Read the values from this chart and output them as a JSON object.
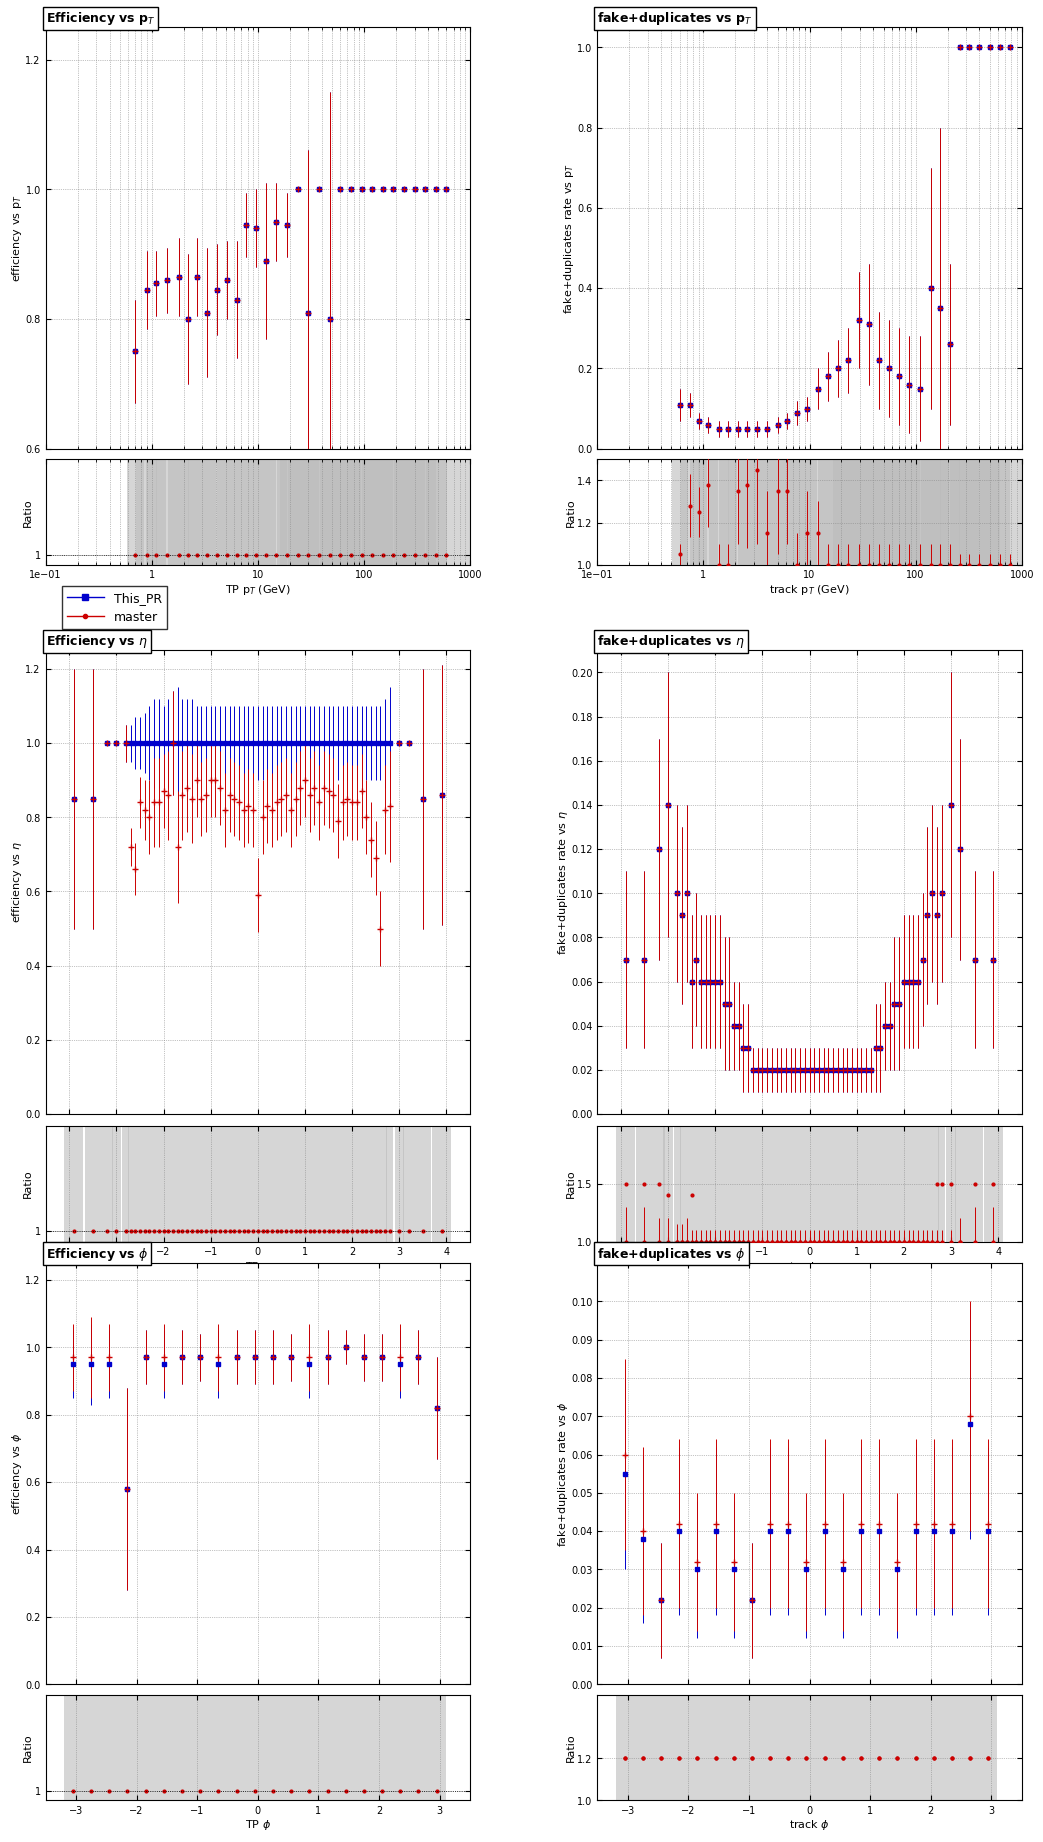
{
  "blue_color": "#0000cc",
  "red_color": "#cc0000",
  "gray_fill": "#bbbbbb",
  "black_color": "#000000",
  "legend_blue": "This_PR",
  "legend_red": "master",
  "eff_pt_x": [
    0.7,
    0.9,
    1.1,
    1.4,
    1.8,
    2.2,
    2.7,
    3.3,
    4.1,
    5.1,
    6.3,
    7.8,
    9.6,
    12.0,
    15.0,
    19.0,
    24.0,
    30.0,
    38.0,
    48.0,
    60.0,
    75.0,
    95.0,
    120.0,
    150.0,
    190.0,
    240.0,
    300.0,
    380.0,
    480.0,
    600.0
  ],
  "eff_pt_blue": [
    0.75,
    0.845,
    0.855,
    0.86,
    0.865,
    0.8,
    0.865,
    0.81,
    0.845,
    0.86,
    0.83,
    0.945,
    0.94,
    0.89,
    0.95,
    0.945,
    1.0,
    0.81,
    1.0,
    0.8,
    1.0,
    1.0,
    1.0,
    1.0,
    1.0,
    1.0,
    1.0,
    1.0,
    1.0,
    1.0,
    1.0
  ],
  "eff_pt_red": [
    0.75,
    0.845,
    0.855,
    0.86,
    0.865,
    0.8,
    0.865,
    0.81,
    0.845,
    0.86,
    0.83,
    0.945,
    0.94,
    0.89,
    0.95,
    0.945,
    1.0,
    0.81,
    1.0,
    0.8,
    1.0,
    1.0,
    1.0,
    1.0,
    1.0,
    1.0,
    1.0,
    1.0,
    1.0,
    1.0,
    1.0
  ],
  "eff_pt_yerr_blue": [
    0.08,
    0.06,
    0.05,
    0.05,
    0.06,
    0.1,
    0.06,
    0.1,
    0.07,
    0.06,
    0.09,
    0.05,
    0.06,
    0.12,
    0.06,
    0.05,
    0.0,
    0.25,
    0.0,
    0.35,
    0.0,
    0.0,
    0.0,
    0.0,
    0.0,
    0.0,
    0.0,
    0.0,
    0.0,
    0.0,
    0.0
  ],
  "eff_pt_yerr_red": [
    0.08,
    0.06,
    0.05,
    0.05,
    0.06,
    0.1,
    0.06,
    0.1,
    0.07,
    0.06,
    0.09,
    0.05,
    0.06,
    0.12,
    0.06,
    0.05,
    0.0,
    0.25,
    0.0,
    0.35,
    0.0,
    0.0,
    0.0,
    0.0,
    0.0,
    0.0,
    0.0,
    0.0,
    0.0,
    0.0,
    0.0
  ],
  "fake_pt_x": [
    0.6,
    0.75,
    0.9,
    1.1,
    1.4,
    1.7,
    2.1,
    2.6,
    3.2,
    4.0,
    5.0,
    6.2,
    7.7,
    9.5,
    12.0,
    15.0,
    18.5,
    23.0,
    29.0,
    36.0,
    45.0,
    56.0,
    70.0,
    87.0,
    110.0,
    140.0,
    170.0,
    210.0,
    260.0,
    320.0,
    400.0,
    500.0,
    620.0,
    770.0
  ],
  "fake_pt_blue": [
    0.11,
    0.11,
    0.07,
    0.06,
    0.05,
    0.05,
    0.05,
    0.05,
    0.05,
    0.05,
    0.06,
    0.07,
    0.09,
    0.1,
    0.15,
    0.18,
    0.2,
    0.22,
    0.32,
    0.31,
    0.22,
    0.2,
    0.18,
    0.16,
    0.15,
    0.4,
    0.35,
    0.26,
    1.0,
    1.0,
    1.0,
    1.0,
    1.0,
    1.0
  ],
  "fake_pt_red": [
    0.11,
    0.11,
    0.07,
    0.06,
    0.05,
    0.05,
    0.05,
    0.05,
    0.05,
    0.05,
    0.06,
    0.07,
    0.09,
    0.1,
    0.15,
    0.18,
    0.2,
    0.22,
    0.32,
    0.31,
    0.22,
    0.2,
    0.18,
    0.16,
    0.15,
    0.4,
    0.35,
    0.26,
    1.0,
    1.0,
    1.0,
    1.0,
    1.0,
    1.0
  ],
  "fake_pt_yerr_blue": [
    0.04,
    0.03,
    0.02,
    0.02,
    0.02,
    0.02,
    0.02,
    0.02,
    0.02,
    0.02,
    0.02,
    0.02,
    0.03,
    0.03,
    0.05,
    0.06,
    0.07,
    0.08,
    0.12,
    0.15,
    0.12,
    0.12,
    0.12,
    0.12,
    0.13,
    0.3,
    0.45,
    0.2,
    0.0,
    0.0,
    0.0,
    0.0,
    0.0,
    0.0
  ],
  "fake_pt_yerr_red": [
    0.04,
    0.03,
    0.02,
    0.02,
    0.02,
    0.02,
    0.02,
    0.02,
    0.02,
    0.02,
    0.02,
    0.02,
    0.03,
    0.03,
    0.05,
    0.06,
    0.07,
    0.08,
    0.12,
    0.15,
    0.12,
    0.12,
    0.12,
    0.12,
    0.13,
    0.3,
    0.45,
    0.2,
    0.0,
    0.0,
    0.0,
    0.0,
    0.0,
    0.0
  ],
  "fake_pt_ratio": [
    1.05,
    1.28,
    1.25,
    1.38,
    1.0,
    1.0,
    1.35,
    1.38,
    1.45,
    1.15,
    1.35,
    1.35,
    1.0,
    1.15,
    1.15,
    1.0,
    1.0,
    1.0,
    1.0,
    1.0,
    1.0,
    1.0,
    1.0,
    1.0,
    1.0,
    1.0,
    1.0,
    1.0,
    1.0,
    1.0,
    1.0,
    1.0,
    1.0,
    1.0
  ],
  "fake_pt_ratio_yerr": [
    0.05,
    0.15,
    0.12,
    0.2,
    0.1,
    0.1,
    0.25,
    0.3,
    0.35,
    0.2,
    0.3,
    0.25,
    0.15,
    0.2,
    0.15,
    0.1,
    0.1,
    0.1,
    0.1,
    0.1,
    0.1,
    0.1,
    0.1,
    0.1,
    0.1,
    0.1,
    0.1,
    0.1,
    0.05,
    0.05,
    0.05,
    0.05,
    0.05,
    0.05
  ],
  "eff_eta_x": [
    -3.9,
    -3.5,
    -3.2,
    -3.0,
    -2.8,
    -2.7,
    -2.6,
    -2.5,
    -2.4,
    -2.3,
    -2.2,
    -2.1,
    -2.0,
    -1.9,
    -1.8,
    -1.7,
    -1.6,
    -1.5,
    -1.4,
    -1.3,
    -1.2,
    -1.1,
    -1.0,
    -0.9,
    -0.8,
    -0.7,
    -0.6,
    -0.5,
    -0.4,
    -0.3,
    -0.2,
    -0.1,
    0.0,
    0.1,
    0.2,
    0.3,
    0.4,
    0.5,
    0.6,
    0.7,
    0.8,
    0.9,
    1.0,
    1.1,
    1.2,
    1.3,
    1.4,
    1.5,
    1.6,
    1.7,
    1.8,
    1.9,
    2.0,
    2.1,
    2.2,
    2.3,
    2.4,
    2.5,
    2.6,
    2.7,
    2.8,
    3.0,
    3.2,
    3.5,
    3.9
  ],
  "eff_eta_blue": [
    0.85,
    0.85,
    1.0,
    1.0,
    1.0,
    1.0,
    1.0,
    1.0,
    1.0,
    1.0,
    1.0,
    1.0,
    1.0,
    1.0,
    1.0,
    1.0,
    1.0,
    1.0,
    1.0,
    1.0,
    1.0,
    1.0,
    1.0,
    1.0,
    1.0,
    1.0,
    1.0,
    1.0,
    1.0,
    1.0,
    1.0,
    1.0,
    1.0,
    1.0,
    1.0,
    1.0,
    1.0,
    1.0,
    1.0,
    1.0,
    1.0,
    1.0,
    1.0,
    1.0,
    1.0,
    1.0,
    1.0,
    1.0,
    1.0,
    1.0,
    1.0,
    1.0,
    1.0,
    1.0,
    1.0,
    1.0,
    1.0,
    1.0,
    1.0,
    1.0,
    1.0,
    1.0,
    1.0,
    0.85,
    0.86
  ],
  "eff_eta_red": [
    0.85,
    0.85,
    1.0,
    1.0,
    1.0,
    1.0,
    1.0,
    1.0,
    1.0,
    1.0,
    1.0,
    1.0,
    1.0,
    1.0,
    1.0,
    1.0,
    1.0,
    1.0,
    1.0,
    1.0,
    1.0,
    1.0,
    1.0,
    1.0,
    1.0,
    1.0,
    1.0,
    1.0,
    1.0,
    1.0,
    1.0,
    1.0,
    1.0,
    1.0,
    1.0,
    1.0,
    1.0,
    1.0,
    1.0,
    1.0,
    1.0,
    1.0,
    1.0,
    1.0,
    1.0,
    1.0,
    1.0,
    1.0,
    1.0,
    1.0,
    1.0,
    1.0,
    1.0,
    1.0,
    1.0,
    1.0,
    1.0,
    1.0,
    1.0,
    1.0,
    1.0,
    1.0,
    1.0,
    0.85,
    0.86
  ],
  "eff_eta_yerr_blue": [
    0.35,
    0.35,
    0.0,
    0.0,
    0.05,
    0.05,
    0.07,
    0.07,
    0.08,
    0.1,
    0.12,
    0.12,
    0.1,
    0.12,
    0.14,
    0.15,
    0.12,
    0.12,
    0.12,
    0.1,
    0.1,
    0.1,
    0.1,
    0.1,
    0.1,
    0.1,
    0.1,
    0.1,
    0.1,
    0.1,
    0.1,
    0.1,
    0.1,
    0.1,
    0.1,
    0.1,
    0.1,
    0.1,
    0.1,
    0.1,
    0.1,
    0.1,
    0.1,
    0.1,
    0.1,
    0.1,
    0.1,
    0.1,
    0.1,
    0.1,
    0.1,
    0.1,
    0.1,
    0.1,
    0.1,
    0.1,
    0.1,
    0.1,
    0.1,
    0.12,
    0.15,
    0.0,
    0.0,
    0.35,
    0.35
  ],
  "eff_eta_yerr_red": [
    0.35,
    0.35,
    0.0,
    0.0,
    0.05,
    0.05,
    0.07,
    0.07,
    0.08,
    0.1,
    0.12,
    0.12,
    0.1,
    0.12,
    0.14,
    0.15,
    0.12,
    0.12,
    0.12,
    0.1,
    0.1,
    0.1,
    0.1,
    0.1,
    0.1,
    0.1,
    0.1,
    0.1,
    0.1,
    0.1,
    0.1,
    0.1,
    0.1,
    0.1,
    0.1,
    0.1,
    0.1,
    0.1,
    0.1,
    0.1,
    0.1,
    0.1,
    0.1,
    0.1,
    0.1,
    0.1,
    0.1,
    0.1,
    0.1,
    0.1,
    0.1,
    0.1,
    0.1,
    0.1,
    0.1,
    0.1,
    0.1,
    0.1,
    0.1,
    0.12,
    0.15,
    0.0,
    0.0,
    0.35,
    0.35
  ],
  "eff_eta_blue_actual": [
    0.85,
    0.85,
    1.0,
    1.0,
    1.0,
    1.0,
    1.0,
    1.0,
    1.0,
    1.0,
    1.0,
    1.0,
    1.0,
    1.0,
    1.0,
    1.0,
    1.0,
    1.0,
    1.0,
    1.0,
    1.0,
    1.0,
    1.0,
    1.0,
    1.0,
    1.0,
    1.0,
    1.0,
    1.0,
    1.0,
    1.0,
    1.0,
    1.0,
    1.0,
    1.0,
    1.0,
    1.0,
    1.0,
    1.0,
    1.0,
    1.0,
    1.0,
    1.0,
    1.0,
    1.0,
    1.0,
    1.0,
    1.0,
    1.0,
    1.0,
    1.0,
    1.0,
    1.0,
    1.0,
    1.0,
    1.0,
    1.0,
    1.0,
    1.0,
    1.0,
    1.0,
    1.0,
    1.0,
    0.85,
    0.86
  ],
  "eff_eta_red_actual": [
    0.85,
    0.85,
    1.0,
    1.0,
    1.0,
    0.72,
    0.66,
    0.84,
    0.82,
    0.8,
    0.84,
    0.84,
    0.87,
    0.86,
    1.0,
    0.72,
    0.86,
    0.88,
    0.85,
    0.9,
    0.85,
    0.86,
    0.9,
    0.9,
    0.88,
    0.82,
    0.86,
    0.85,
    0.84,
    0.82,
    0.83,
    0.82,
    0.59,
    0.8,
    0.83,
    0.82,
    0.84,
    0.85,
    0.86,
    0.82,
    0.85,
    0.88,
    0.9,
    0.86,
    0.88,
    0.84,
    0.88,
    0.87,
    0.86,
    0.79,
    0.84,
    0.85,
    0.84,
    0.84,
    0.87,
    0.8,
    0.74,
    0.69,
    0.5,
    0.82,
    0.83,
    1.0,
    1.0,
    0.85,
    0.86
  ],
  "fake_eta_x": [
    -3.9,
    -3.5,
    -3.2,
    -3.0,
    -2.8,
    -2.7,
    -2.6,
    -2.5,
    -2.4,
    -2.3,
    -2.2,
    -2.1,
    -2.0,
    -1.9,
    -1.8,
    -1.7,
    -1.6,
    -1.5,
    -1.4,
    -1.3,
    -1.2,
    -1.1,
    -1.0,
    -0.9,
    -0.8,
    -0.7,
    -0.6,
    -0.5,
    -0.4,
    -0.3,
    -0.2,
    -0.1,
    0.0,
    0.1,
    0.2,
    0.3,
    0.4,
    0.5,
    0.6,
    0.7,
    0.8,
    0.9,
    1.0,
    1.1,
    1.2,
    1.3,
    1.4,
    1.5,
    1.6,
    1.7,
    1.8,
    1.9,
    2.0,
    2.1,
    2.2,
    2.3,
    2.4,
    2.5,
    2.6,
    2.7,
    2.8,
    3.0,
    3.2,
    3.5,
    3.9
  ],
  "fake_eta_blue": [
    0.07,
    0.07,
    0.12,
    0.14,
    0.1,
    0.09,
    0.1,
    0.06,
    0.07,
    0.06,
    0.06,
    0.06,
    0.06,
    0.06,
    0.05,
    0.05,
    0.04,
    0.04,
    0.03,
    0.03,
    0.02,
    0.02,
    0.02,
    0.02,
    0.02,
    0.02,
    0.02,
    0.02,
    0.02,
    0.02,
    0.02,
    0.02,
    0.02,
    0.02,
    0.02,
    0.02,
    0.02,
    0.02,
    0.02,
    0.02,
    0.02,
    0.02,
    0.02,
    0.02,
    0.02,
    0.02,
    0.03,
    0.03,
    0.04,
    0.04,
    0.05,
    0.05,
    0.06,
    0.06,
    0.06,
    0.06,
    0.07,
    0.09,
    0.1,
    0.09,
    0.1,
    0.14,
    0.12,
    0.07,
    0.07
  ],
  "fake_eta_red": [
    0.07,
    0.07,
    0.12,
    0.14,
    0.1,
    0.09,
    0.1,
    0.06,
    0.07,
    0.06,
    0.06,
    0.06,
    0.06,
    0.06,
    0.05,
    0.05,
    0.04,
    0.04,
    0.03,
    0.03,
    0.02,
    0.02,
    0.02,
    0.02,
    0.02,
    0.02,
    0.02,
    0.02,
    0.02,
    0.02,
    0.02,
    0.02,
    0.02,
    0.02,
    0.02,
    0.02,
    0.02,
    0.02,
    0.02,
    0.02,
    0.02,
    0.02,
    0.02,
    0.02,
    0.02,
    0.02,
    0.03,
    0.03,
    0.04,
    0.04,
    0.05,
    0.05,
    0.06,
    0.06,
    0.06,
    0.06,
    0.07,
    0.09,
    0.1,
    0.09,
    0.1,
    0.14,
    0.12,
    0.07,
    0.07
  ],
  "fake_eta_yerr_blue": [
    0.04,
    0.04,
    0.05,
    0.06,
    0.04,
    0.04,
    0.04,
    0.03,
    0.03,
    0.03,
    0.03,
    0.03,
    0.03,
    0.03,
    0.03,
    0.03,
    0.02,
    0.02,
    0.02,
    0.02,
    0.01,
    0.01,
    0.01,
    0.01,
    0.01,
    0.01,
    0.01,
    0.01,
    0.01,
    0.01,
    0.01,
    0.01,
    0.01,
    0.01,
    0.01,
    0.01,
    0.01,
    0.01,
    0.01,
    0.01,
    0.01,
    0.01,
    0.01,
    0.01,
    0.01,
    0.01,
    0.02,
    0.02,
    0.02,
    0.02,
    0.03,
    0.03,
    0.03,
    0.03,
    0.03,
    0.03,
    0.03,
    0.04,
    0.04,
    0.04,
    0.04,
    0.06,
    0.05,
    0.04,
    0.04
  ],
  "fake_eta_yerr_red": [
    0.04,
    0.04,
    0.05,
    0.06,
    0.04,
    0.04,
    0.04,
    0.03,
    0.03,
    0.03,
    0.03,
    0.03,
    0.03,
    0.03,
    0.03,
    0.03,
    0.02,
    0.02,
    0.02,
    0.02,
    0.01,
    0.01,
    0.01,
    0.01,
    0.01,
    0.01,
    0.01,
    0.01,
    0.01,
    0.01,
    0.01,
    0.01,
    0.01,
    0.01,
    0.01,
    0.01,
    0.01,
    0.01,
    0.01,
    0.01,
    0.01,
    0.01,
    0.01,
    0.01,
    0.01,
    0.01,
    0.02,
    0.02,
    0.02,
    0.02,
    0.03,
    0.03,
    0.03,
    0.03,
    0.03,
    0.03,
    0.03,
    0.04,
    0.04,
    0.04,
    0.04,
    0.06,
    0.05,
    0.04,
    0.04
  ],
  "eff_phi_x": [
    -3.05,
    -2.75,
    -2.45,
    -2.15,
    -1.85,
    -1.55,
    -1.25,
    -0.95,
    -0.65,
    -0.35,
    -0.05,
    0.25,
    0.55,
    0.85,
    1.15,
    1.45,
    1.75,
    2.05,
    2.35,
    2.65,
    2.95
  ],
  "eff_phi_blue": [
    0.95,
    0.95,
    0.95,
    0.58,
    0.97,
    0.95,
    0.97,
    0.97,
    0.95,
    0.97,
    0.97,
    0.97,
    0.97,
    0.95,
    0.97,
    1.0,
    0.97,
    0.97,
    0.95,
    0.97,
    0.82
  ],
  "eff_phi_red": [
    0.97,
    0.97,
    0.97,
    0.58,
    0.97,
    0.97,
    0.97,
    0.97,
    0.97,
    0.97,
    0.97,
    0.97,
    0.97,
    0.97,
    0.97,
    1.0,
    0.97,
    0.97,
    0.97,
    0.97,
    0.82
  ],
  "eff_phi_yerr_blue": [
    0.1,
    0.12,
    0.1,
    0.3,
    0.08,
    0.1,
    0.08,
    0.07,
    0.1,
    0.08,
    0.08,
    0.08,
    0.07,
    0.1,
    0.08,
    0.05,
    0.07,
    0.07,
    0.1,
    0.08,
    0.15
  ],
  "eff_phi_yerr_red": [
    0.1,
    0.12,
    0.1,
    0.3,
    0.08,
    0.1,
    0.08,
    0.07,
    0.1,
    0.08,
    0.08,
    0.08,
    0.07,
    0.1,
    0.08,
    0.05,
    0.07,
    0.07,
    0.1,
    0.08,
    0.15
  ],
  "fake_phi_x": [
    -3.05,
    -2.75,
    -2.45,
    -2.15,
    -1.85,
    -1.55,
    -1.25,
    -0.95,
    -0.65,
    -0.35,
    -0.05,
    0.25,
    0.55,
    0.85,
    1.15,
    1.45,
    1.75,
    2.05,
    2.35,
    2.65,
    2.95
  ],
  "fake_phi_blue": [
    0.055,
    0.038,
    0.022,
    0.04,
    0.03,
    0.04,
    0.03,
    0.022,
    0.04,
    0.04,
    0.03,
    0.04,
    0.03,
    0.04,
    0.04,
    0.03,
    0.04,
    0.04,
    0.04,
    0.068,
    0.04
  ],
  "fake_phi_red": [
    0.06,
    0.04,
    0.022,
    0.042,
    0.032,
    0.042,
    0.032,
    0.022,
    0.042,
    0.042,
    0.032,
    0.042,
    0.032,
    0.042,
    0.042,
    0.032,
    0.042,
    0.042,
    0.042,
    0.07,
    0.042
  ],
  "fake_phi_yerr_blue": [
    0.025,
    0.022,
    0.015,
    0.022,
    0.018,
    0.022,
    0.018,
    0.015,
    0.022,
    0.022,
    0.018,
    0.022,
    0.018,
    0.022,
    0.022,
    0.018,
    0.022,
    0.022,
    0.022,
    0.03,
    0.022
  ],
  "fake_phi_yerr_red": [
    0.025,
    0.022,
    0.015,
    0.022,
    0.018,
    0.022,
    0.018,
    0.015,
    0.022,
    0.022,
    0.018,
    0.022,
    0.018,
    0.022,
    0.022,
    0.018,
    0.022,
    0.022,
    0.022,
    0.03,
    0.022
  ],
  "eff_pt_ylim": [
    0.6,
    1.25
  ],
  "eff_pt_yticks": [
    0.6,
    0.8,
    1.0,
    1.2
  ],
  "fake_pt_ylim": [
    0.0,
    1.05
  ],
  "fake_pt_yticks": [
    0.0,
    0.2,
    0.4,
    0.6,
    0.8,
    1.0
  ],
  "eff_eta_ylim": [
    0.0,
    1.25
  ],
  "eff_eta_yticks": [
    0.0,
    0.2,
    0.4,
    0.6,
    0.8,
    1.0,
    1.2
  ],
  "fake_eta_ylim": [
    0.0,
    0.21
  ],
  "fake_eta_yticks": [
    0.0,
    0.02,
    0.04,
    0.06,
    0.08,
    0.1,
    0.12,
    0.14,
    0.16,
    0.18,
    0.2
  ],
  "eff_phi_ylim": [
    0.0,
    1.25
  ],
  "eff_phi_yticks": [
    0.0,
    0.2,
    0.4,
    0.6,
    0.8,
    1.0,
    1.2
  ],
  "fake_phi_ylim": [
    0.0,
    0.11
  ],
  "fake_phi_yticks": [
    0.0,
    0.01,
    0.02,
    0.03,
    0.04,
    0.05,
    0.06,
    0.07,
    0.08,
    0.09,
    0.1
  ],
  "ratio_eff_pt_ylim": [
    0.95,
    1.5
  ],
  "ratio_eff_pt_yticks": [
    1.0
  ],
  "ratio_fake_pt_ylim": [
    1.0,
    1.5
  ],
  "ratio_fake_pt_yticks": [
    1.0,
    1.2,
    1.4
  ],
  "ratio_eff_eta_ylim": [
    0.95,
    1.5
  ],
  "ratio_eff_eta_yticks": [
    1.0
  ],
  "ratio_fake_eta_ylim": [
    1.0,
    2.0
  ],
  "ratio_fake_eta_yticks": [
    1.0,
    1.5
  ],
  "ratio_eff_phi_ylim": [
    0.95,
    1.5
  ],
  "ratio_eff_phi_yticks": [
    1.0
  ],
  "ratio_fake_phi_ylim": [
    1.0,
    1.5
  ],
  "ratio_fake_phi_yticks": [
    1.0,
    1.2
  ]
}
